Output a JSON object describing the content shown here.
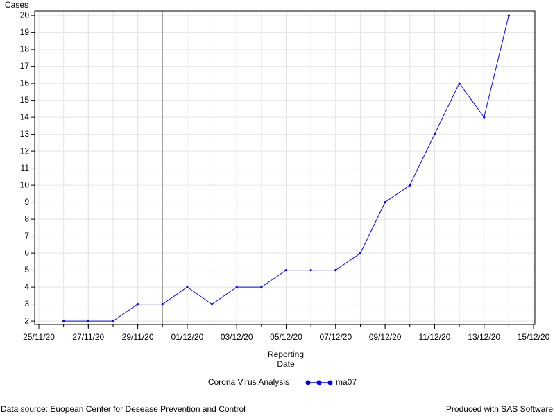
{
  "chart_data": {
    "type": "line",
    "y_label": "Cases",
    "x_label_lines": [
      "Reporting",
      "Date"
    ],
    "x": [
      "26/11/20",
      "27/11/20",
      "28/11/20",
      "29/11/20",
      "30/11/20",
      "01/12/20",
      "02/12/20",
      "03/12/20",
      "04/12/20",
      "05/12/20",
      "06/12/20",
      "07/12/20",
      "08/12/20",
      "09/12/20",
      "10/12/20",
      "11/12/20",
      "12/12/20",
      "13/12/20",
      "14/12/20"
    ],
    "series": [
      {
        "name": "ma07",
        "color": "#0000ff",
        "values": [
          2,
          2,
          2,
          3,
          3,
          4,
          3,
          4,
          4,
          5,
          5,
          5,
          6,
          9,
          10,
          13,
          16,
          14,
          20
        ]
      }
    ],
    "legend_title": "Corona Virus Analysis",
    "reference_line_x": "30/11/20",
    "xlim": [
      "25/11/20",
      "15/12/20"
    ],
    "xticks": [
      "25/11/20",
      "27/11/20",
      "29/11/20",
      "01/12/20",
      "03/12/20",
      "05/12/20",
      "07/12/20",
      "09/12/20",
      "11/12/20",
      "13/12/20",
      "15/12/20"
    ],
    "ylim": [
      1.8,
      20.25
    ],
    "yticks": [
      2,
      3,
      4,
      5,
      6,
      7,
      8,
      9,
      10,
      11,
      12,
      13,
      14,
      15,
      16,
      17,
      18,
      19,
      20
    ],
    "grid": true,
    "footnote_left": "Data source: Euopean Center for Desease Prevention and Control",
    "footnote_right": "Produced with SAS Software"
  }
}
